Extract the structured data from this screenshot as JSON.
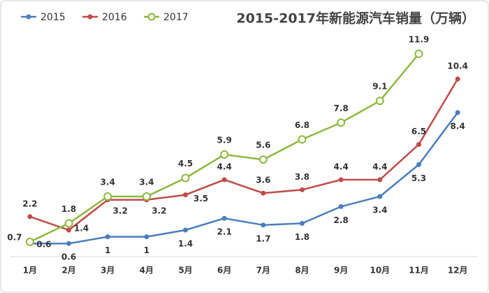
{
  "chart_data": {
    "type": "line",
    "title": "2015-2017年新能源汽车销量（万辆）",
    "categories": [
      "1月",
      "2月",
      "3月",
      "4月",
      "5月",
      "6月",
      "7月",
      "8月",
      "9月",
      "10月",
      "11月",
      "12月"
    ],
    "series": [
      {
        "name": "2015",
        "color": "#4a7ebb",
        "values": [
          0.6,
          0.6,
          1,
          1,
          1.4,
          2.1,
          1.7,
          1.8,
          2.8,
          3.4,
          5.3,
          8.4
        ]
      },
      {
        "name": "2016",
        "color": "#be4b48",
        "values": [
          2.2,
          1.4,
          3.2,
          3.2,
          3.5,
          4.4,
          3.6,
          3.8,
          4.4,
          4.4,
          6.5,
          10.4
        ]
      },
      {
        "name": "2017",
        "color": "#8cb73f",
        "values": [
          0.7,
          1.8,
          3.4,
          3.4,
          4.5,
          5.9,
          5.6,
          6.8,
          7.8,
          9.1,
          11.9,
          null
        ]
      }
    ],
    "ylim": [
      0,
      12
    ],
    "legend": "top-left"
  }
}
